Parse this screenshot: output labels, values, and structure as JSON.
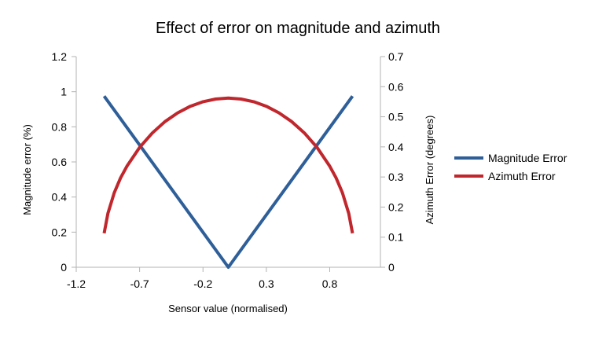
{
  "chart_data": {
    "type": "line",
    "title": "Effect of error on magnitude and azimuth",
    "xlabel": "Sensor value (normalised)",
    "ylabel": "Magnitude error (%)",
    "y2label": "Azimuth Error (degrees)",
    "xlim": [
      -1.2,
      1.2
    ],
    "ylim": [
      0,
      1.2
    ],
    "y2lim": [
      0,
      0.7
    ],
    "x_ticks": [
      "-1.2",
      "-0.7",
      "-0.2",
      "0.3",
      "0.8"
    ],
    "y_ticks": [
      "0",
      "0.2",
      "0.4",
      "0.6",
      "0.8",
      "1",
      "1.2"
    ],
    "y2_ticks": [
      "0",
      "0.1",
      "0.2",
      "0.3",
      "0.4",
      "0.5",
      "0.6",
      "0.7"
    ],
    "grid": false,
    "legend_position": "right",
    "series": [
      {
        "name": "Magnitude Error",
        "axis": "left",
        "color": "#2e5f99",
        "x": [
          -0.98,
          0.0,
          0.98
        ],
        "y": [
          0.975,
          0.0,
          0.975
        ]
      },
      {
        "name": "Azimuth Error",
        "axis": "right",
        "color": "#c0272d",
        "x": [
          -0.98,
          -0.95,
          -0.9,
          -0.85,
          -0.8,
          -0.7,
          -0.6,
          -0.5,
          -0.4,
          -0.3,
          -0.2,
          -0.1,
          0.0,
          0.1,
          0.2,
          0.3,
          0.4,
          0.5,
          0.6,
          0.7,
          0.8,
          0.85,
          0.9,
          0.95,
          0.98
        ],
        "y": [
          0.113,
          0.179,
          0.248,
          0.297,
          0.336,
          0.398,
          0.446,
          0.484,
          0.513,
          0.535,
          0.55,
          0.559,
          0.562,
          0.559,
          0.55,
          0.535,
          0.513,
          0.484,
          0.446,
          0.398,
          0.336,
          0.297,
          0.248,
          0.179,
          0.113
        ]
      }
    ]
  }
}
